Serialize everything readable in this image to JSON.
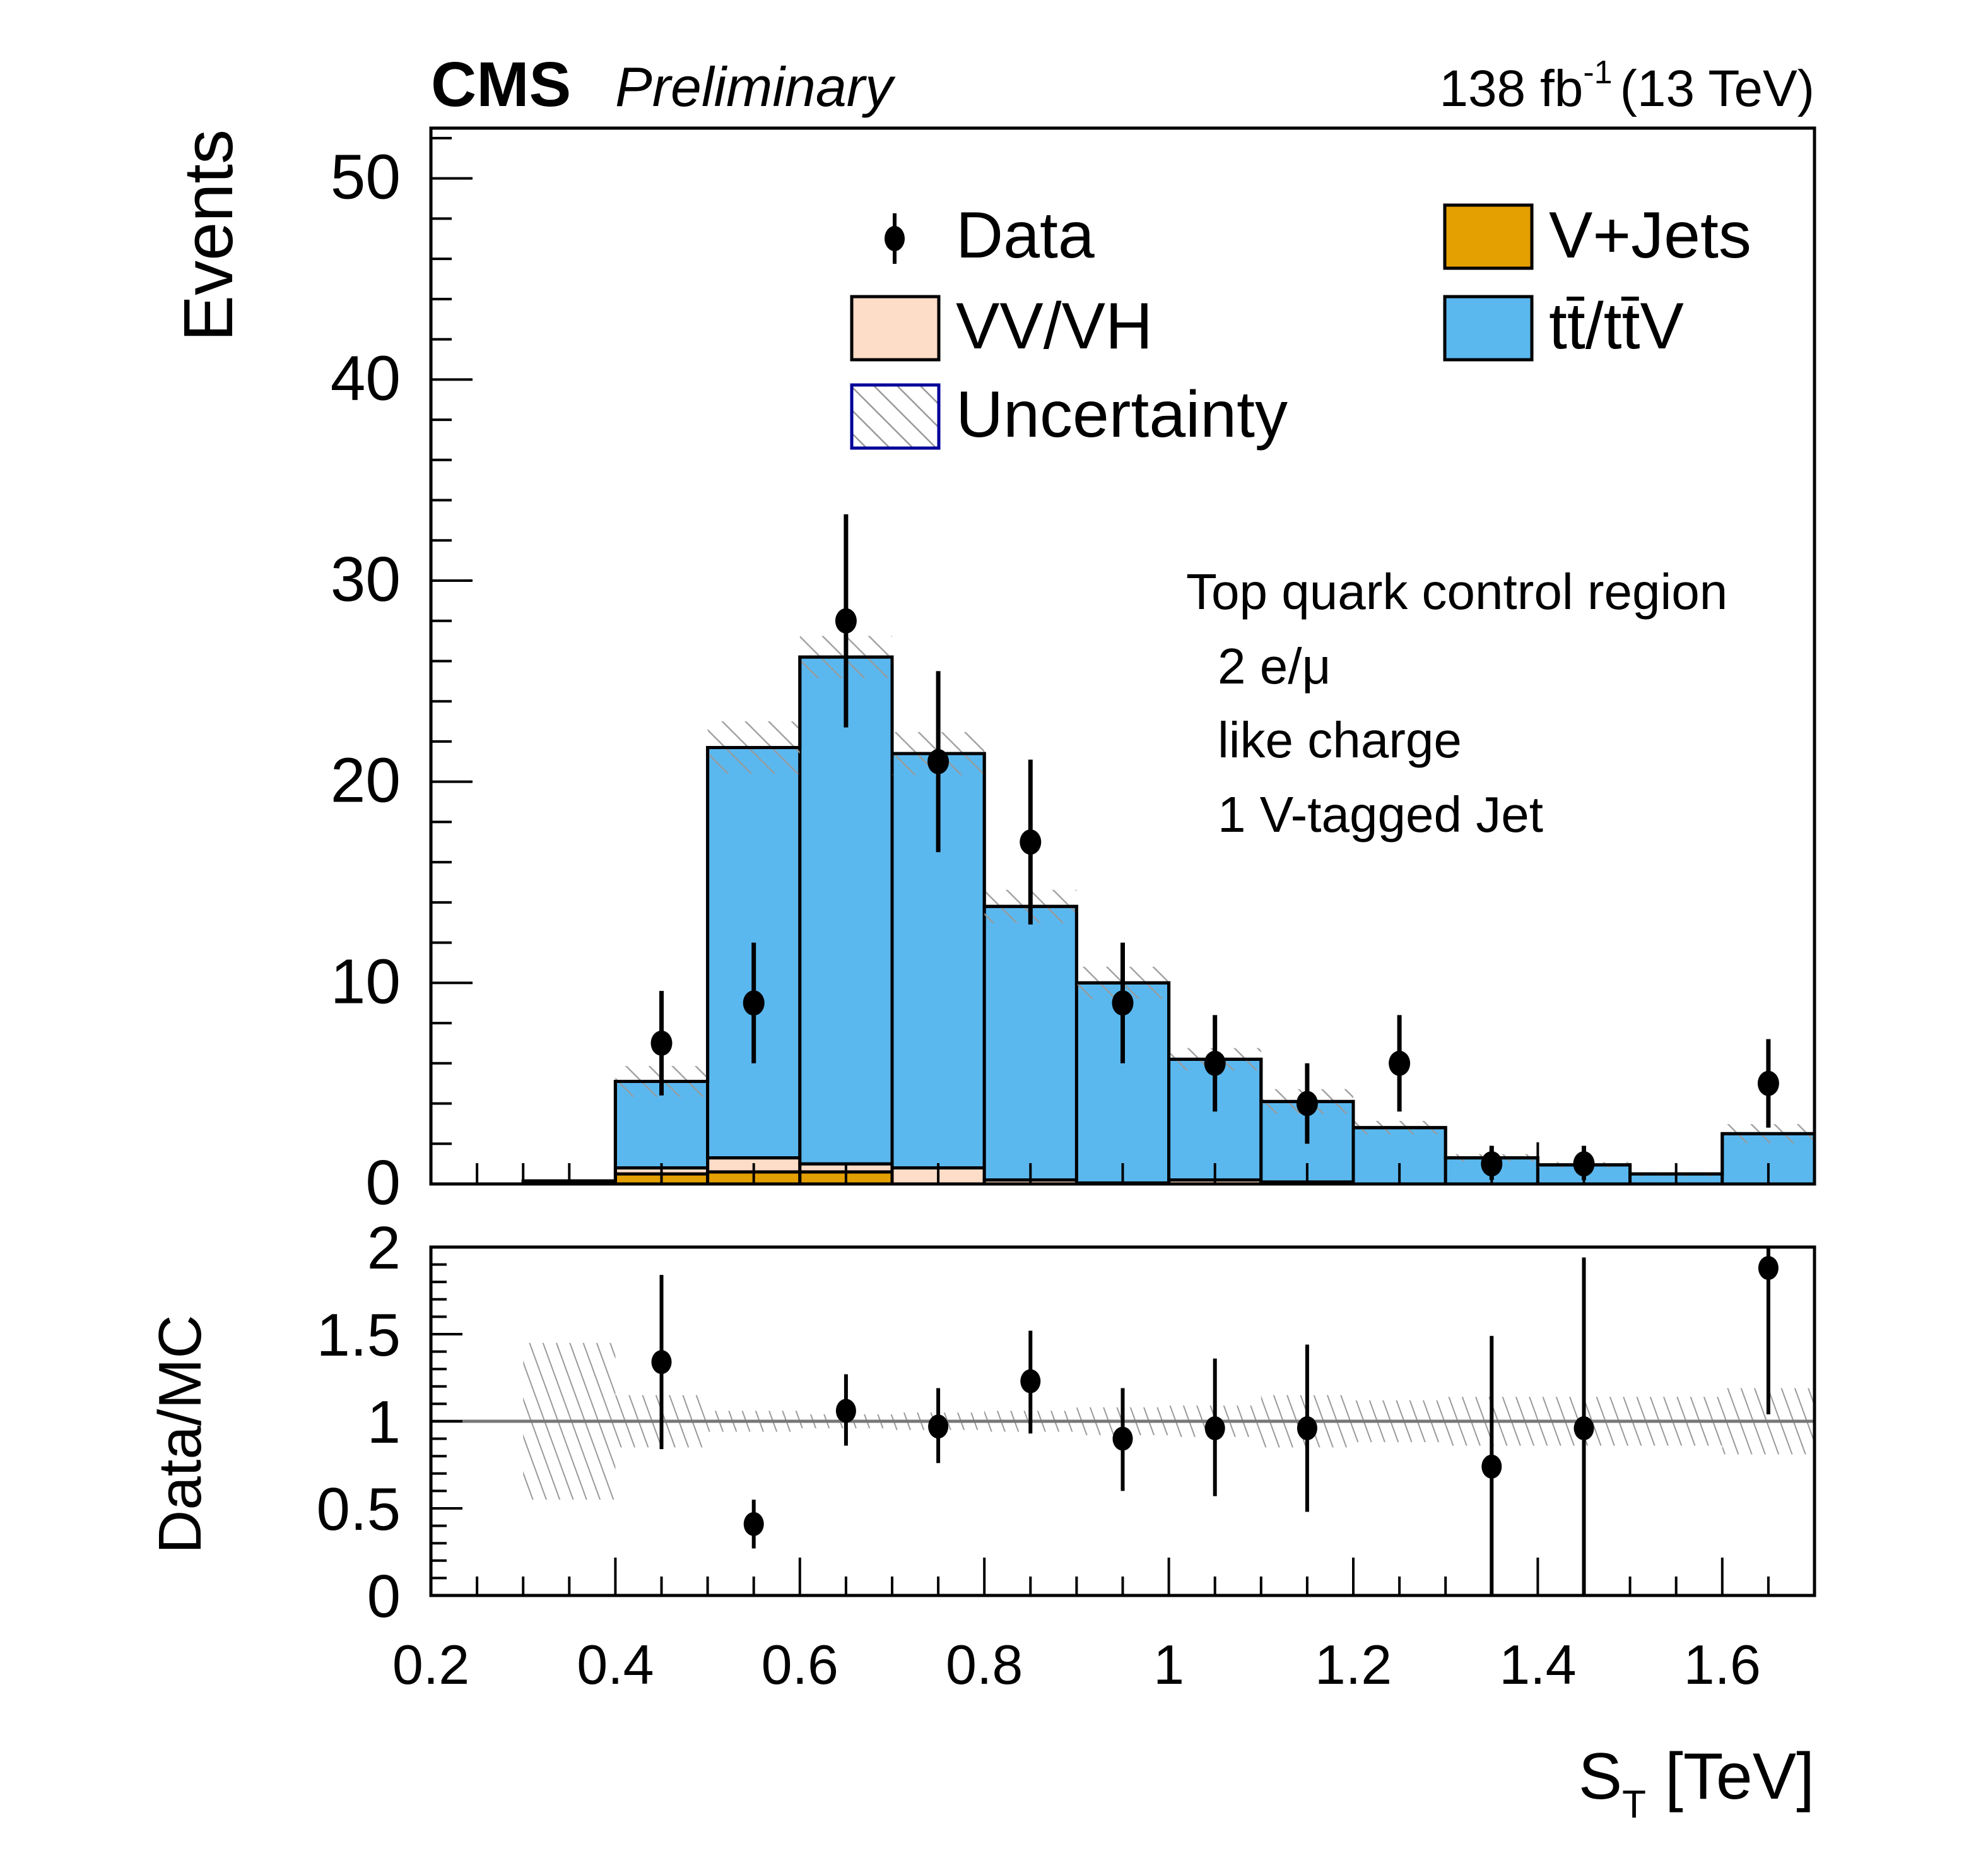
{
  "header": {
    "experiment": "CMS",
    "status": "Preliminary",
    "lumi_value": "138 fb",
    "lumi_exponent": "-1",
    "energy": "(13 TeV)"
  },
  "colors": {
    "ttbar": "#5bb8ef",
    "vjets": "#e49f00",
    "vv": "#fddcc8",
    "hatch": "#999999",
    "unc_border": "#000099",
    "ref_line": "#777777"
  },
  "legend": {
    "placement": "top-right",
    "items": [
      {
        "key": "data",
        "label": "Data"
      },
      {
        "key": "vjets",
        "label": "V+Jets"
      },
      {
        "key": "vv",
        "label": "VV/VH"
      },
      {
        "key": "ttbar",
        "label": "tt̄/tt̄V"
      },
      {
        "key": "unc",
        "label": "Uncertainty"
      }
    ]
  },
  "annotation": {
    "lines": [
      "Top quark control region",
      "2 e/μ",
      "like charge",
      "1 V-tagged Jet"
    ]
  },
  "chart_data": [
    {
      "type": "bar",
      "subtype": "stacked-histogram-with-data",
      "title": "",
      "xlabel": "S_T [TeV]",
      "xlabel_main": "S",
      "xlabel_sub": "T",
      "xlabel_unit": "[TeV]",
      "ylabel": "Events",
      "xlim": [
        0.2,
        1.7
      ],
      "ylim": [
        0,
        52.5
      ],
      "grid": false,
      "xticks": [
        0.2,
        0.4,
        0.6,
        0.8,
        1,
        1.2,
        1.4,
        1.6
      ],
      "xtick_labels": [
        "0.2",
        "0.4",
        "0.6",
        "0.8",
        "1",
        "1.2",
        "1.4",
        "1.6"
      ],
      "yticks": [
        0,
        10,
        20,
        30,
        40,
        50
      ],
      "ytick_labels": [
        "0",
        "10",
        "20",
        "30",
        "40",
        "50"
      ],
      "bin_edges": [
        0.2,
        0.3,
        0.4,
        0.5,
        0.6,
        0.7,
        0.8,
        0.9,
        1.0,
        1.1,
        1.2,
        1.3,
        1.4,
        1.5,
        1.6,
        1.7
      ],
      "series": [
        {
          "name": "V+Jets",
          "key": "vjets",
          "values": [
            0,
            0,
            0.5,
            0.6,
            0.6,
            0,
            0,
            0,
            0,
            0,
            0,
            0,
            0,
            0,
            0
          ]
        },
        {
          "name": "VV/VH",
          "key": "vv",
          "values": [
            0,
            0,
            0.3,
            0.7,
            0.4,
            0.8,
            0.2,
            0.05,
            0.2,
            0.1,
            0,
            0,
            0,
            0,
            0
          ]
        },
        {
          "name": "tt̄/tt̄V",
          "key": "ttbar",
          "values": [
            0,
            0.15,
            4.3,
            20.4,
            25.2,
            20.6,
            13.6,
            9.95,
            6.0,
            4.0,
            2.8,
            1.3,
            0.95,
            0.5,
            2.5
          ]
        }
      ],
      "totals": [
        0,
        0.15,
        5.1,
        21.7,
        26.2,
        21.4,
        13.8,
        10.0,
        6.2,
        4.1,
        2.8,
        1.3,
        0.95,
        0.5,
        2.5
      ],
      "uncertainty_rel": [
        0,
        0.45,
        0.15,
        0.06,
        0.04,
        0.05,
        0.06,
        0.08,
        0.09,
        0.15,
        0.12,
        0.14,
        0.14,
        0.14,
        0.19
      ],
      "data": {
        "name": "Data",
        "x": [
          0.45,
          0.55,
          0.65,
          0.75,
          0.85,
          0.95,
          1.05,
          1.15,
          1.25,
          1.35,
          1.45,
          1.65
        ],
        "y": [
          7,
          9,
          28,
          21,
          17,
          9,
          6,
          4,
          6,
          1,
          1,
          5
        ],
        "err_up": [
          2.6,
          3.0,
          5.3,
          4.5,
          4.1,
          3.0,
          2.4,
          2.0,
          2.4,
          0.9,
          0.9,
          2.2
        ],
        "err_down": [
          2.6,
          3.0,
          5.3,
          4.5,
          4.1,
          3.0,
          2.4,
          2.0,
          2.4,
          0.8,
          0.8,
          2.2
        ]
      }
    },
    {
      "type": "scatter",
      "subtype": "ratio",
      "xlabel": "S_T [TeV]",
      "ylabel": "Data/MC",
      "xlim": [
        0.2,
        1.7
      ],
      "ylim": [
        0,
        2
      ],
      "grid": false,
      "reference_line": 1,
      "yticks": [
        0,
        0.5,
        1,
        1.5,
        2
      ],
      "ytick_labels": [
        "0",
        "0.5",
        "1",
        "1.5",
        "2"
      ],
      "x": [
        0.45,
        0.55,
        0.65,
        0.75,
        0.85,
        0.95,
        1.05,
        1.15,
        1.35,
        1.45,
        1.65
      ],
      "y": [
        1.34,
        0.41,
        1.06,
        0.97,
        1.23,
        0.9,
        0.96,
        0.96,
        0.74,
        0.96,
        1.88
      ],
      "err_up_abs": [
        1.84,
        0.55,
        1.27,
        1.19,
        1.52,
        1.19,
        1.36,
        1.44,
        1.49,
        1.94,
        2.0
      ],
      "err_down_abs": [
        0.84,
        0.27,
        0.86,
        0.76,
        0.93,
        0.6,
        0.57,
        0.48,
        0.0,
        0.0,
        1.04
      ],
      "band_bins": [
        0.3,
        0.4,
        0.5,
        0.6,
        0.7,
        0.8,
        0.9,
        1.0,
        1.1,
        1.2,
        1.3,
        1.4,
        1.5,
        1.6,
        1.7
      ],
      "band_lo": [
        0.55,
        0.85,
        0.94,
        0.96,
        0.95,
        0.94,
        0.92,
        0.91,
        0.85,
        0.88,
        0.86,
        0.86,
        0.86,
        0.81
      ],
      "band_hi": [
        1.45,
        1.15,
        1.06,
        1.04,
        1.05,
        1.06,
        1.08,
        1.09,
        1.15,
        1.12,
        1.14,
        1.14,
        1.14,
        1.19
      ]
    }
  ]
}
